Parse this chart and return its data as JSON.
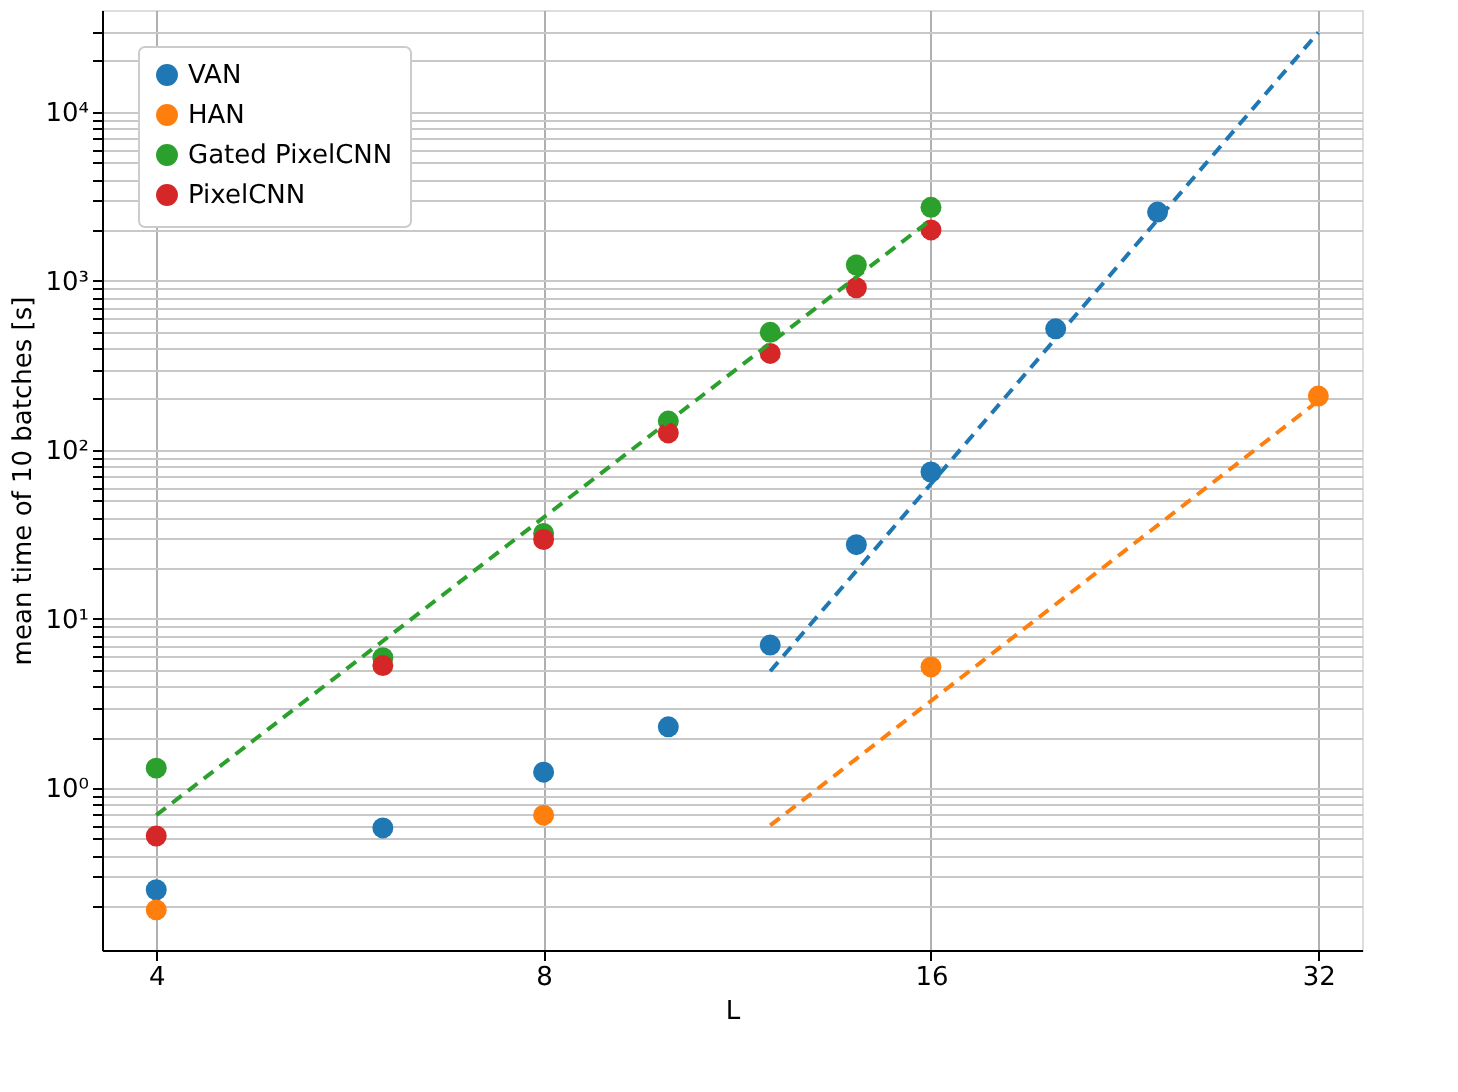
{
  "chart_data": {
    "type": "scatter",
    "xlabel": "L",
    "ylabel": "mean time of 10 batches [s]",
    "log": "xy",
    "grid": true,
    "legend": "top left",
    "marker": "circle",
    "xlim": [
      3.63,
      34.6
    ],
    "xticks": [
      4,
      8,
      16,
      32
    ],
    "ylim": [
      0.11,
      40000
    ],
    "yticks": [
      {
        "value": 0.2,
        "label": null
      },
      {
        "value": 0.3,
        "label": null
      },
      {
        "value": 0.4,
        "label": null
      },
      {
        "value": 0.5,
        "label": null
      },
      {
        "value": 0.6,
        "label": null
      },
      {
        "value": 0.7,
        "label": null
      },
      {
        "value": 0.8,
        "label": null
      },
      {
        "value": 0.9,
        "label": null
      },
      {
        "value": 1,
        "label": "10⁰"
      },
      {
        "value": 2,
        "label": null
      },
      {
        "value": 3,
        "label": null
      },
      {
        "value": 4,
        "label": null
      },
      {
        "value": 5,
        "label": null
      },
      {
        "value": 6,
        "label": null
      },
      {
        "value": 7,
        "label": null
      },
      {
        "value": 8,
        "label": null
      },
      {
        "value": 9,
        "label": null
      },
      {
        "value": 10,
        "label": "10¹"
      },
      {
        "value": 20,
        "label": null
      },
      {
        "value": 30,
        "label": null
      },
      {
        "value": 40,
        "label": null
      },
      {
        "value": 50,
        "label": null
      },
      {
        "value": 60,
        "label": null
      },
      {
        "value": 70,
        "label": null
      },
      {
        "value": 80,
        "label": null
      },
      {
        "value": 90,
        "label": null
      },
      {
        "value": 100,
        "label": "10²"
      },
      {
        "value": 200,
        "label": null
      },
      {
        "value": 300,
        "label": null
      },
      {
        "value": 400,
        "label": null
      },
      {
        "value": 500,
        "label": null
      },
      {
        "value": 600,
        "label": null
      },
      {
        "value": 700,
        "label": null
      },
      {
        "value": 800,
        "label": null
      },
      {
        "value": 900,
        "label": null
      },
      {
        "value": 1000,
        "label": "10³"
      },
      {
        "value": 2000,
        "label": null
      },
      {
        "value": 3000,
        "label": null
      },
      {
        "value": 4000,
        "label": null
      },
      {
        "value": 5000,
        "label": null
      },
      {
        "value": 6000,
        "label": null
      },
      {
        "value": 7000,
        "label": null
      },
      {
        "value": 8000,
        "label": null
      },
      {
        "value": 9000,
        "label": null
      },
      {
        "value": 10000,
        "label": "10⁴"
      },
      {
        "value": 20000,
        "label": null
      },
      {
        "value": 30000,
        "label": null
      }
    ],
    "series": [
      {
        "name": "VAN",
        "color": "#1f77b4",
        "x": [
          4,
          6,
          8,
          10,
          12,
          14,
          16,
          20,
          24
        ],
        "values": [
          0.25,
          0.58,
          1.24,
          2.3,
          7.0,
          27.5,
          74,
          520,
          2550
        ]
      },
      {
        "name": "HAN",
        "color": "#ff7f0e",
        "x": [
          4,
          8,
          16,
          32
        ],
        "values": [
          0.19,
          0.69,
          5.2,
          208
        ]
      },
      {
        "name": "Gated PixelCNN",
        "color": "#2ca02c",
        "x": [
          4,
          6,
          8,
          10,
          12,
          14,
          16
        ],
        "values": [
          1.31,
          5.9,
          32,
          148,
          496,
          1240,
          2720
        ]
      },
      {
        "name": "PixelCNN",
        "color": "#d62728",
        "x": [
          4,
          6,
          8,
          10,
          12,
          14,
          16
        ],
        "values": [
          0.52,
          5.3,
          29.5,
          126,
          372,
          910,
          2000
        ]
      },
      {
        "type": "line",
        "marker": "none",
        "line_style": "dashed",
        "color": "#2ca02c",
        "x": [
          4,
          16
        ],
        "values": [
          0.69,
          2300
        ]
      },
      {
        "type": "line",
        "marker": "none",
        "line_style": "dashed",
        "color": "#1f77b4",
        "x": [
          12,
          32
        ],
        "values": [
          4.9,
          29500
        ]
      },
      {
        "type": "line",
        "marker": "none",
        "line_style": "dashed",
        "color": "#ff7f0e",
        "x": [
          12,
          32
        ],
        "values": [
          0.6,
          195
        ]
      }
    ]
  }
}
